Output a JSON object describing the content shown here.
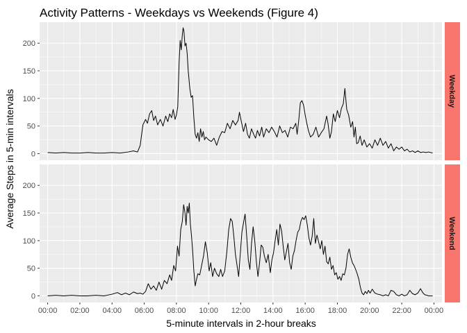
{
  "chart_data": {
    "type": "line",
    "title": "Activity Patterns - Weekdays vs Weekends (Figure 4)",
    "xlabel": "5-minute intervals in 2-hour breaks",
    "ylabel": "Average Steps in 5-min intervals",
    "x_ticks": [
      "00:00",
      "02:00",
      "04:00",
      "06:00",
      "08:00",
      "10:00",
      "12:00",
      "14:00",
      "16:00",
      "18:00",
      "20:00",
      "22:00",
      "00:00"
    ],
    "x_tick_minutes": [
      0,
      120,
      240,
      360,
      480,
      600,
      720,
      840,
      960,
      1080,
      1200,
      1320,
      1440
    ],
    "xlim_minutes": [
      -30,
      1470
    ],
    "y_ticks": [
      0,
      50,
      100,
      150,
      200
    ],
    "ylim": [
      -12,
      238
    ],
    "grid": true,
    "line_color": "#000000",
    "panel_background": "#ebebeb",
    "grid_color": "#ffffff",
    "strip_color": "#f8766d",
    "facets": [
      {
        "name": "Weekday",
        "points": [
          [
            0,
            2
          ],
          [
            30,
            1
          ],
          [
            60,
            2
          ],
          [
            90,
            1
          ],
          [
            120,
            1
          ],
          [
            150,
            2
          ],
          [
            180,
            1
          ],
          [
            210,
            1
          ],
          [
            240,
            2
          ],
          [
            270,
            1
          ],
          [
            300,
            3
          ],
          [
            320,
            5
          ],
          [
            335,
            3
          ],
          [
            345,
            15
          ],
          [
            355,
            52
          ],
          [
            365,
            62
          ],
          [
            372,
            55
          ],
          [
            380,
            72
          ],
          [
            388,
            78
          ],
          [
            395,
            60
          ],
          [
            402,
            68
          ],
          [
            410,
            52
          ],
          [
            420,
            62
          ],
          [
            430,
            50
          ],
          [
            440,
            68
          ],
          [
            448,
            58
          ],
          [
            455,
            72
          ],
          [
            462,
            65
          ],
          [
            468,
            80
          ],
          [
            475,
            62
          ],
          [
            480,
            70
          ],
          [
            485,
            85
          ],
          [
            490,
            165
          ],
          [
            494,
            205
          ],
          [
            498,
            188
          ],
          [
            502,
            215
          ],
          [
            505,
            228
          ],
          [
            508,
            222
          ],
          [
            512,
            195
          ],
          [
            516,
            200
          ],
          [
            520,
            182
          ],
          [
            524,
            150
          ],
          [
            530,
            118
          ],
          [
            535,
            102
          ],
          [
            540,
            105
          ],
          [
            545,
            65
          ],
          [
            550,
            35
          ],
          [
            555,
            28
          ],
          [
            560,
            38
          ],
          [
            565,
            22
          ],
          [
            570,
            45
          ],
          [
            575,
            30
          ],
          [
            580,
            40
          ],
          [
            585,
            25
          ],
          [
            590,
            30
          ],
          [
            600,
            25
          ],
          [
            610,
            22
          ],
          [
            620,
            28
          ],
          [
            630,
            15
          ],
          [
            640,
            30
          ],
          [
            650,
            40
          ],
          [
            660,
            38
          ],
          [
            670,
            55
          ],
          [
            680,
            45
          ],
          [
            690,
            60
          ],
          [
            700,
            52
          ],
          [
            710,
            60
          ],
          [
            715,
            75
          ],
          [
            722,
            58
          ],
          [
            730,
            40
          ],
          [
            738,
            55
          ],
          [
            745,
            35
          ],
          [
            752,
            28
          ],
          [
            760,
            45
          ],
          [
            768,
            35
          ],
          [
            775,
            28
          ],
          [
            782,
            42
          ],
          [
            790,
            32
          ],
          [
            798,
            48
          ],
          [
            805,
            30
          ],
          [
            815,
            45
          ],
          [
            825,
            38
          ],
          [
            835,
            48
          ],
          [
            845,
            40
          ],
          [
            855,
            30
          ],
          [
            865,
            50
          ],
          [
            875,
            38
          ],
          [
            885,
            42
          ],
          [
            895,
            30
          ],
          [
            905,
            48
          ],
          [
            915,
            45
          ],
          [
            925,
            55
          ],
          [
            930,
            35
          ],
          [
            936,
            60
          ],
          [
            942,
            92
          ],
          [
            948,
            96
          ],
          [
            954,
            88
          ],
          [
            960,
            70
          ],
          [
            966,
            55
          ],
          [
            972,
            42
          ],
          [
            980,
            30
          ],
          [
            990,
            35
          ],
          [
            1000,
            48
          ],
          [
            1010,
            30
          ],
          [
            1020,
            38
          ],
          [
            1030,
            45
          ],
          [
            1040,
            68
          ],
          [
            1045,
            55
          ],
          [
            1052,
            28
          ],
          [
            1058,
            40
          ],
          [
            1065,
            72
          ],
          [
            1072,
            58
          ],
          [
            1080,
            78
          ],
          [
            1088,
            65
          ],
          [
            1095,
            82
          ],
          [
            1102,
            90
          ],
          [
            1108,
            118
          ],
          [
            1115,
            80
          ],
          [
            1122,
            70
          ],
          [
            1130,
            48
          ],
          [
            1137,
            58
          ],
          [
            1142,
            30
          ],
          [
            1147,
            48
          ],
          [
            1152,
            18
          ],
          [
            1158,
            20
          ],
          [
            1165,
            32
          ],
          [
            1172,
            15
          ],
          [
            1180,
            25
          ],
          [
            1190,
            12
          ],
          [
            1200,
            18
          ],
          [
            1210,
            10
          ],
          [
            1220,
            25
          ],
          [
            1230,
            15
          ],
          [
            1240,
            28
          ],
          [
            1250,
            15
          ],
          [
            1260,
            22
          ],
          [
            1270,
            10
          ],
          [
            1280,
            18
          ],
          [
            1290,
            5
          ],
          [
            1300,
            12
          ],
          [
            1310,
            8
          ],
          [
            1320,
            12
          ],
          [
            1330,
            5
          ],
          [
            1340,
            8
          ],
          [
            1350,
            3
          ],
          [
            1360,
            5
          ],
          [
            1370,
            2
          ],
          [
            1380,
            5
          ],
          [
            1390,
            2
          ],
          [
            1400,
            3
          ],
          [
            1410,
            2
          ],
          [
            1420,
            3
          ],
          [
            1435,
            1
          ]
        ]
      },
      {
        "name": "Weekend",
        "points": [
          [
            0,
            0
          ],
          [
            30,
            1
          ],
          [
            60,
            0
          ],
          [
            90,
            1
          ],
          [
            120,
            0
          ],
          [
            150,
            0
          ],
          [
            180,
            1
          ],
          [
            210,
            0
          ],
          [
            240,
            3
          ],
          [
            260,
            6
          ],
          [
            275,
            2
          ],
          [
            290,
            5
          ],
          [
            305,
            2
          ],
          [
            320,
            7
          ],
          [
            335,
            4
          ],
          [
            345,
            5
          ],
          [
            355,
            3
          ],
          [
            365,
            8
          ],
          [
            375,
            22
          ],
          [
            385,
            12
          ],
          [
            395,
            18
          ],
          [
            405,
            10
          ],
          [
            415,
            25
          ],
          [
            425,
            12
          ],
          [
            435,
            28
          ],
          [
            445,
            22
          ],
          [
            455,
            38
          ],
          [
            462,
            28
          ],
          [
            470,
            55
          ],
          [
            477,
            45
          ],
          [
            484,
            90
          ],
          [
            490,
            72
          ],
          [
            496,
            120
          ],
          [
            502,
            135
          ],
          [
            507,
            165
          ],
          [
            512,
            150
          ],
          [
            516,
            128
          ],
          [
            520,
            162
          ],
          [
            524,
            150
          ],
          [
            528,
            168
          ],
          [
            532,
            130
          ],
          [
            536,
            110
          ],
          [
            540,
            85
          ],
          [
            545,
            45
          ],
          [
            550,
            18
          ],
          [
            555,
            30
          ],
          [
            560,
            40
          ],
          [
            567,
            38
          ],
          [
            574,
            55
          ],
          [
            581,
            72
          ],
          [
            588,
            98
          ],
          [
            595,
            78
          ],
          [
            602,
            45
          ],
          [
            608,
            60
          ],
          [
            615,
            35
          ],
          [
            622,
            50
          ],
          [
            630,
            40
          ],
          [
            638,
            35
          ],
          [
            645,
            48
          ],
          [
            652,
            35
          ],
          [
            660,
            45
          ],
          [
            668,
            80
          ],
          [
            675,
            120
          ],
          [
            682,
            140
          ],
          [
            688,
            135
          ],
          [
            694,
            108
          ],
          [
            700,
            75
          ],
          [
            706,
            55
          ],
          [
            712,
            35
          ],
          [
            718,
            75
          ],
          [
            724,
            115
          ],
          [
            730,
            132
          ],
          [
            736,
            148
          ],
          [
            742,
            108
          ],
          [
            748,
            65
          ],
          [
            754,
            48
          ],
          [
            760,
            95
          ],
          [
            766,
            125
          ],
          [
            772,
            100
          ],
          [
            778,
            62
          ],
          [
            784,
            35
          ],
          [
            790,
            60
          ],
          [
            796,
            92
          ],
          [
            802,
            88
          ],
          [
            808,
            72
          ],
          [
            815,
            60
          ],
          [
            822,
            75
          ],
          [
            830,
            42
          ],
          [
            836,
            65
          ],
          [
            842,
            78
          ],
          [
            848,
            100
          ],
          [
            854,
            120
          ],
          [
            860,
            92
          ],
          [
            866,
            130
          ],
          [
            872,
            118
          ],
          [
            878,
            90
          ],
          [
            884,
            65
          ],
          [
            890,
            80
          ],
          [
            896,
            95
          ],
          [
            902,
            60
          ],
          [
            908,
            48
          ],
          [
            914,
            72
          ],
          [
            920,
            82
          ],
          [
            926,
            100
          ],
          [
            932,
            115
          ],
          [
            938,
            120
          ],
          [
            944,
            135
          ],
          [
            950,
            142
          ],
          [
            956,
            138
          ],
          [
            962,
            145
          ],
          [
            968,
            128
          ],
          [
            974,
            105
          ],
          [
            980,
            92
          ],
          [
            986,
            108
          ],
          [
            992,
            140
          ],
          [
            998,
            95
          ],
          [
            1004,
            110
          ],
          [
            1010,
            98
          ],
          [
            1016,
            85
          ],
          [
            1022,
            100
          ],
          [
            1028,
            75
          ],
          [
            1034,
            90
          ],
          [
            1040,
            62
          ],
          [
            1046,
            58
          ],
          [
            1052,
            70
          ],
          [
            1058,
            48
          ],
          [
            1064,
            55
          ],
          [
            1070,
            38
          ],
          [
            1076,
            42
          ],
          [
            1082,
            30
          ],
          [
            1088,
            35
          ],
          [
            1094,
            28
          ],
          [
            1100,
            40
          ],
          [
            1106,
            38
          ],
          [
            1112,
            50
          ],
          [
            1118,
            75
          ],
          [
            1124,
            85
          ],
          [
            1130,
            70
          ],
          [
            1136,
            60
          ],
          [
            1142,
            55
          ],
          [
            1148,
            48
          ],
          [
            1154,
            40
          ],
          [
            1160,
            30
          ],
          [
            1166,
            15
          ],
          [
            1172,
            5
          ],
          [
            1178,
            2
          ],
          [
            1184,
            8
          ],
          [
            1190,
            4
          ],
          [
            1196,
            10
          ],
          [
            1202,
            5
          ],
          [
            1210,
            12
          ],
          [
            1220,
            5
          ],
          [
            1230,
            3
          ],
          [
            1240,
            2
          ],
          [
            1250,
            0
          ],
          [
            1260,
            2
          ],
          [
            1270,
            0
          ],
          [
            1280,
            10
          ],
          [
            1290,
            8
          ],
          [
            1300,
            2
          ],
          [
            1310,
            0
          ],
          [
            1320,
            3
          ],
          [
            1330,
            0
          ],
          [
            1340,
            2
          ],
          [
            1350,
            10
          ],
          [
            1360,
            4
          ],
          [
            1370,
            2
          ],
          [
            1380,
            5
          ],
          [
            1390,
            13
          ],
          [
            1398,
            6
          ],
          [
            1406,
            2
          ],
          [
            1414,
            1
          ],
          [
            1420,
            0
          ],
          [
            1435,
            0
          ]
        ]
      }
    ]
  }
}
